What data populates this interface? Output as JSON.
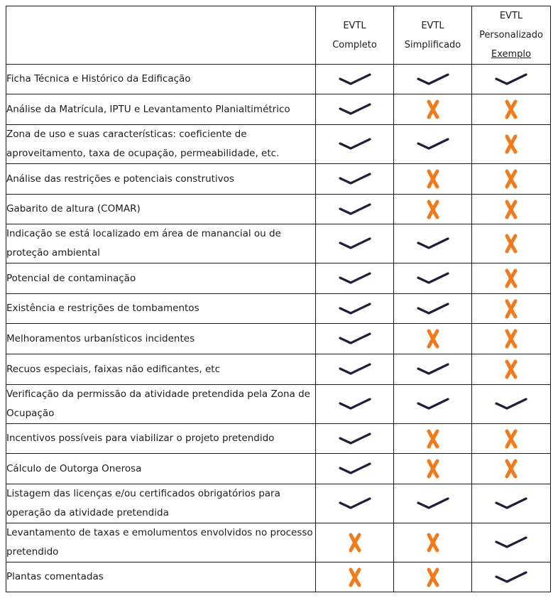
{
  "header": {
    "columns": [
      {
        "line1": "EVTL",
        "line2": "Completo",
        "line3": ""
      },
      {
        "line1": "EVTL",
        "line2": "Simplificado",
        "line3": ""
      },
      {
        "line1": "EVTL",
        "line2": "Personalizado",
        "line3": "Exemplo"
      }
    ]
  },
  "rows": [
    {
      "label": "Ficha Técnica e Histórico da Edificação",
      "marks": [
        "check",
        "check",
        "check"
      ],
      "h": 42
    },
    {
      "label": "Análise da Matrícula, IPTU e Levantamento Planialtimétrico",
      "marks": [
        "check",
        "cross",
        "cross"
      ],
      "h": 43
    },
    {
      "label": "Zona de uso e suas características: coeficiente de aproveitamento, taxa de ocupação, permeabilidade, etc.",
      "marks": [
        "check",
        "check",
        "cross"
      ],
      "h": 55
    },
    {
      "label": "Análise das restrições e potenciais construtivos",
      "marks": [
        "check",
        "cross",
        "cross"
      ],
      "h": 43
    },
    {
      "label": "Gabarito de altura (COMAR)",
      "marks": [
        "check",
        "cross",
        "cross"
      ],
      "h": 42
    },
    {
      "label": "Indicação  se está localizado em área de manancial ou de proteção ambiental",
      "marks": [
        "check",
        "check",
        "cross"
      ],
      "h": 55
    },
    {
      "label": "Potencial de contaminação",
      "marks": [
        "check",
        "check",
        "cross"
      ],
      "h": 43
    },
    {
      "label": "Existência e restrições de tombamentos",
      "marks": [
        "check",
        "check",
        "cross"
      ],
      "h": 42
    },
    {
      "label": "Melhoramentos urbanísticos incidentes",
      "marks": [
        "check",
        "cross",
        "cross"
      ],
      "h": 43
    },
    {
      "label": "Recuos especiais, faixas não edificantes, etc",
      "marks": [
        "check",
        "check",
        "cross"
      ],
      "h": 43
    },
    {
      "label": "Verificação da permissão da atividade pretendida pela Zona de Ocupação",
      "marks": [
        "check",
        "check",
        "check"
      ],
      "h": 55
    },
    {
      "label": "Incentivos possíveis para viabilizar o projeto pretendido",
      "marks": [
        "check",
        "cross",
        "cross"
      ],
      "h": 42
    },
    {
      "label": "Cálculo de Outorga Onerosa",
      "marks": [
        "check",
        "cross",
        "cross"
      ],
      "h": 43
    },
    {
      "label": "Listagem das licenças e/ou certificados obrigatórios para operação da atividade pretendida",
      "marks": [
        "check",
        "check",
        "check"
      ],
      "h": 55
    },
    {
      "label": "Levantamento de taxas e emolumentos envolvidos no processo pretendido",
      "marks": [
        "cross",
        "cross",
        "check"
      ],
      "h": 55
    },
    {
      "label": "Plantas comentadas",
      "marks": [
        "cross",
        "cross",
        "check"
      ],
      "h": 42
    }
  ],
  "colors": {
    "check": "#1f1f3a",
    "cross": "#f07a1c"
  },
  "icons": {
    "check": "check-icon",
    "cross": "cross-icon"
  }
}
